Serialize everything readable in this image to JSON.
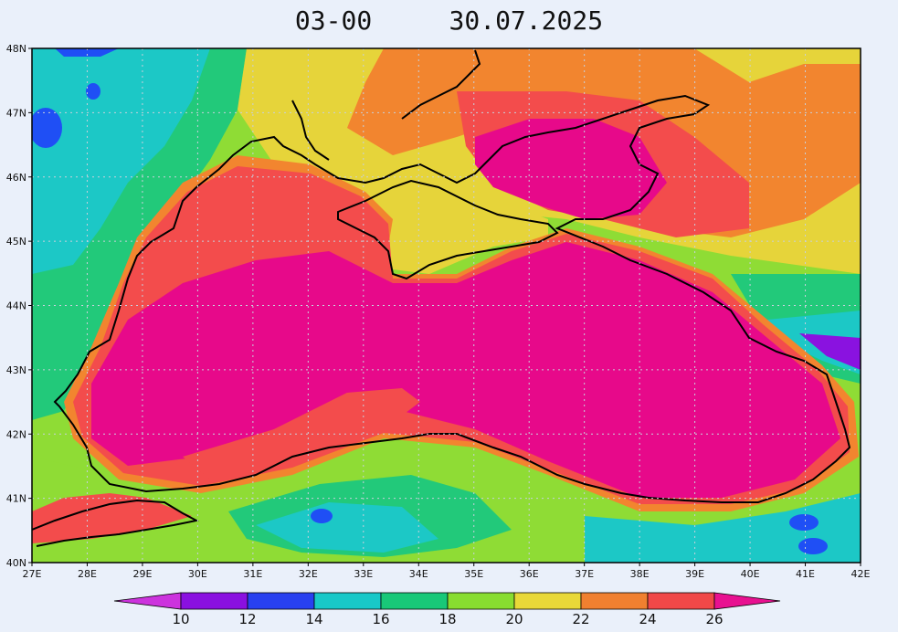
{
  "title": {
    "time": "03-00",
    "date": "30.07.2025"
  },
  "map": {
    "lon_range": [
      27,
      42
    ],
    "lat_range": [
      40,
      48
    ],
    "lon_ticks": [
      "27E",
      "28E",
      "29E",
      "30E",
      "31E",
      "32E",
      "33E",
      "34E",
      "35E",
      "36E",
      "37E",
      "38E",
      "39E",
      "40E",
      "41E",
      "42E"
    ],
    "lat_ticks": [
      "40N",
      "41N",
      "42N",
      "43N",
      "44N",
      "45N",
      "46N",
      "47N",
      "48N"
    ],
    "grid": "dotted",
    "variable": "temperature field"
  },
  "colorbar": {
    "labels": [
      "10",
      "12",
      "14",
      "16",
      "18",
      "20",
      "22",
      "24",
      "26"
    ],
    "colors": [
      "#cc33dd",
      "#8a10e0",
      "#2840f0",
      "#18c8c8",
      "#18c878",
      "#88dd30",
      "#e8d838",
      "#f08030",
      "#f04848",
      "#e81090"
    ]
  },
  "palette": {
    "c14": "#1f4ff5",
    "c16": "#1cc8c6",
    "c18": "#22c97a",
    "c20": "#8fdc35",
    "c22": "#e6d43a",
    "c24": "#f2852f",
    "c26": "#f34c4c",
    "c28": "#e7098a",
    "c12": "#8a12e0"
  }
}
